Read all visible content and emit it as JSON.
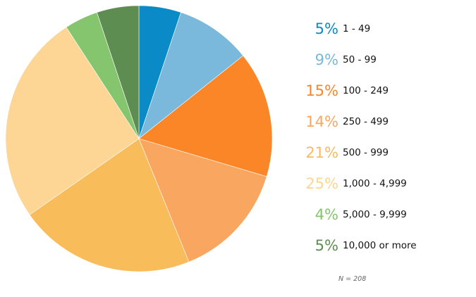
{
  "chart_data": {
    "type": "pie",
    "categories": [
      "1 - 49",
      "50 - 99",
      "100 - 249",
      "250 - 499",
      "500 - 999",
      "1,000 - 4,999",
      "5,000 - 9,999",
      "10,000 or more"
    ],
    "values": [
      5,
      9,
      15,
      14,
      21,
      25,
      4,
      5
    ],
    "value_labels": [
      "5%",
      "9%",
      "15%",
      "14%",
      "21%",
      "25%",
      "4%",
      "5%"
    ],
    "colors": [
      "#0a8ac6",
      "#7ab9dc",
      "#fb8628",
      "#f9a760",
      "#f8bc5a",
      "#fdd595",
      "#85c56e",
      "#5e8d51"
    ],
    "start_angle": "12 o'clock",
    "direction": "clockwise",
    "legend_position": "right",
    "note": "N = 208"
  }
}
